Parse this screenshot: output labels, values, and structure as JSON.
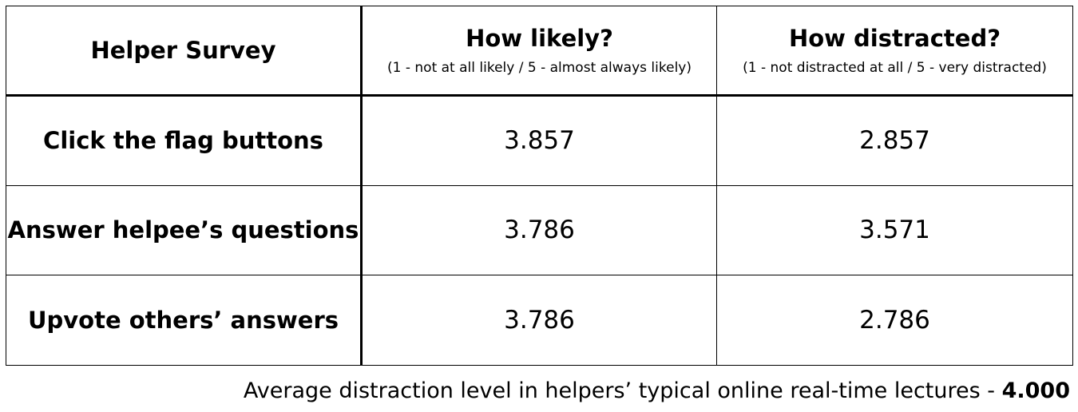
{
  "table": {
    "corner_title": "Helper Survey",
    "columns": [
      {
        "title": "How likely?",
        "subtitle": "(1 - not at all likely / 5 - almost always likely)"
      },
      {
        "title": "How distracted?",
        "subtitle": "(1 - not distracted at all / 5 - very distracted)"
      }
    ],
    "rows": [
      {
        "label": "Click the flag buttons",
        "likely": "3.857",
        "distracted": "2.857"
      },
      {
        "label": "Answer helpee’s questions",
        "likely": "3.786",
        "distracted": "3.571"
      },
      {
        "label": "Upvote others’ answers",
        "likely": "3.786",
        "distracted": "2.786"
      }
    ]
  },
  "footnote": {
    "text": "Average distraction level in helpers’ typical online real-time lectures - ",
    "value": "4.000"
  }
}
